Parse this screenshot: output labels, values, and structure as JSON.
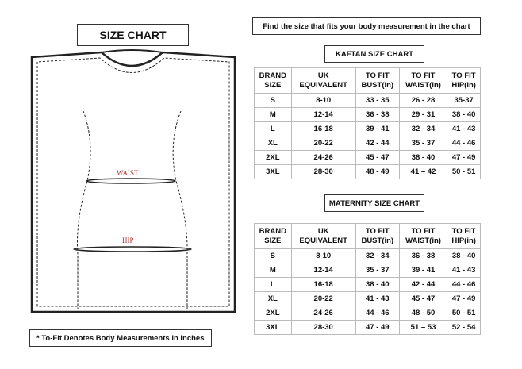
{
  "title": "SIZE CHART",
  "instruction": "Find the size that fits your body measurement in the chart",
  "garment": {
    "waist_label": "WAIST",
    "hip_label": "HIP",
    "label_color": "#b5322a"
  },
  "footnote": "* To-Fit Denotes Body Measurements in Inches",
  "kaftan": {
    "title": "KAFTAN SIZE CHART",
    "headers": [
      [
        "BRAND",
        "SIZE"
      ],
      [
        "UK",
        "EQUIVALENT"
      ],
      [
        "TO FIT",
        "BUST(in)"
      ],
      [
        "TO FIT",
        "WAIST(in)"
      ],
      [
        "TO FIT",
        "HIP(in)"
      ]
    ],
    "rows": [
      [
        "S",
        "8-10",
        "33 - 35",
        "26 - 28",
        "35-37"
      ],
      [
        "M",
        "12-14",
        "36 - 38",
        "29 - 31",
        "38 - 40"
      ],
      [
        "L",
        "16-18",
        "39 - 41",
        "32 - 34",
        "41 - 43"
      ],
      [
        "XL",
        "20-22",
        "42 - 44",
        "35 - 37",
        "44 - 46"
      ],
      [
        "2XL",
        "24-26",
        "45 - 47",
        "38 - 40",
        "47 - 49"
      ],
      [
        "3XL",
        "28-30",
        "48 - 49",
        "41 – 42",
        "50 - 51"
      ]
    ]
  },
  "maternity": {
    "title": "MATERNITY SIZE CHART",
    "headers": [
      [
        "BRAND",
        "SIZE"
      ],
      [
        "UK",
        "EQUIVALENT"
      ],
      [
        "TO FIT",
        "BUST(in)"
      ],
      [
        "TO FIT",
        "WAIST(in)"
      ],
      [
        "TO FIT",
        "HIP(in)"
      ]
    ],
    "rows": [
      [
        "S",
        "8-10",
        "32 - 34",
        "36 - 38",
        "38 - 40"
      ],
      [
        "M",
        "12-14",
        "35 - 37",
        "39 - 41",
        "41 - 43"
      ],
      [
        "L",
        "16-18",
        "38 - 40",
        "42 - 44",
        "44 - 46"
      ],
      [
        "XL",
        "20-22",
        "41 - 43",
        "45 - 47",
        "47 - 49"
      ],
      [
        "2XL",
        "24-26",
        "44 - 46",
        "48 - 50",
        "50 - 51"
      ],
      [
        "3XL",
        "28-30",
        "47 - 49",
        "51 – 53",
        "52 - 54"
      ]
    ]
  }
}
